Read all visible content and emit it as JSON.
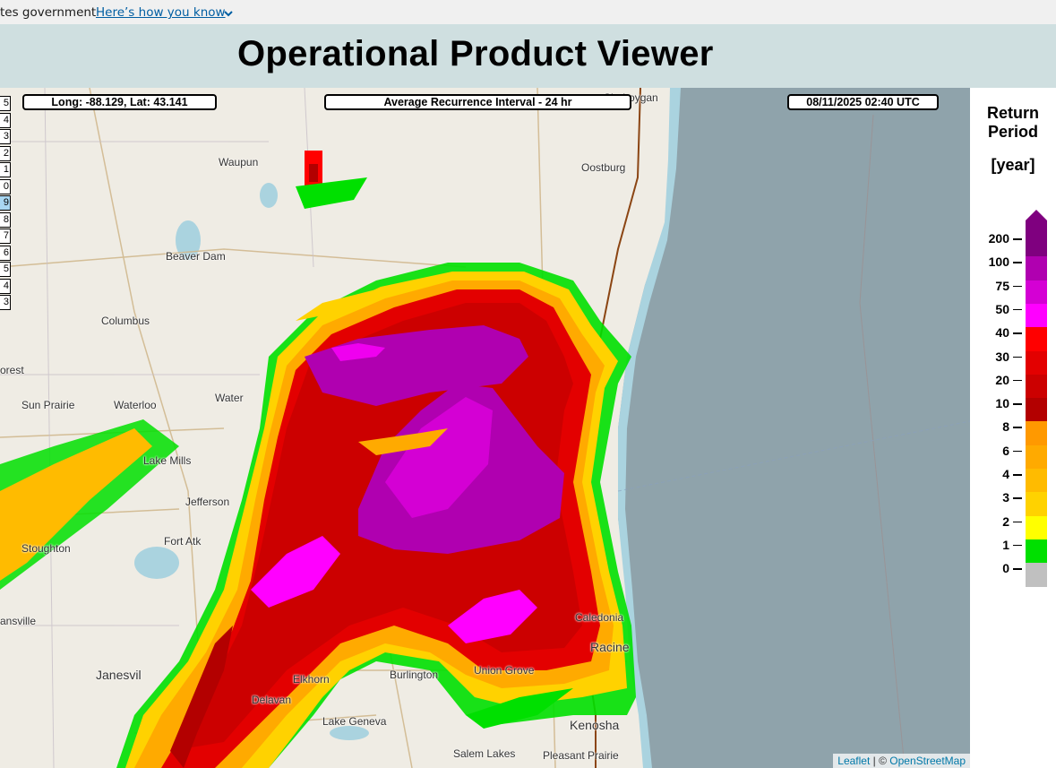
{
  "banner": {
    "text": "tes government",
    "link": "Here’s how you know"
  },
  "header": {
    "title": "Operational Product Viewer"
  },
  "map": {
    "coords": "Long: -88.129,  Lat: 43.141",
    "product": "Average Recurrence Interval - 24 hr",
    "datetime": "08/11/2025   02:40 UTC",
    "layer_tabs": [
      "5",
      "4",
      "3",
      "2",
      "1",
      "0",
      "9",
      "8",
      "7",
      "6",
      "5",
      "4",
      "3"
    ],
    "selected_tab": 6,
    "attribution_leaflet": "Leaflet",
    "attribution_sep": " | © ",
    "attribution_osm": "OpenStreetMap",
    "places": [
      "Sheboygan",
      "Waupun",
      "Oostburg",
      "Beaver Dam",
      "Columbus",
      "orest",
      "Sun Prairie",
      "Waterloo",
      "Water",
      "Lake Mills",
      "Jefferson",
      "Fort Atk",
      "Stoughton",
      "ansville",
      "Janesvil",
      "Delavan",
      "Elkhorn",
      "Burlington",
      "Union Grove",
      "Caledonia",
      "Racine",
      "Lake Geneva",
      "Kenosha",
      "Salem Lakes",
      "Pleasant Prairie"
    ],
    "lake_color": "#aad3df",
    "water_gray": "#8fa3ab"
  },
  "legend": {
    "title_line1": "Return",
    "title_line2": "Period",
    "unit": "[year]",
    "labels": [
      "200",
      "100",
      "75",
      "50",
      "40",
      "30",
      "20",
      "10",
      "8",
      "6",
      "4",
      "3",
      "2",
      "1",
      "0"
    ],
    "colors": [
      "#7f007f",
      "#b000b0",
      "#d400d4",
      "#ff00ff",
      "#ff0000",
      "#e30000",
      "#cc0000",
      "#b30000",
      "#ff9900",
      "#ffaa00",
      "#ffbb00",
      "#ffd200",
      "#ffff00",
      "#00e000",
      "#c0c0c0"
    ]
  }
}
